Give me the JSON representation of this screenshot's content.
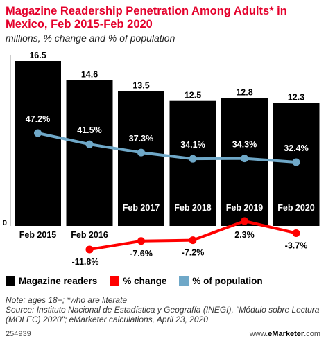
{
  "chart_data": {
    "type": "bar",
    "title": "Magazine Readership Penetration Among Adults* in Mexico, Feb 2015-Feb 2020",
    "subtitle": "millions, % change and % of population",
    "categories": [
      "Feb 2015",
      "Feb 2016",
      "Feb 2017",
      "Feb 2018",
      "Feb 2019",
      "Feb 2020"
    ],
    "zero_label": "0",
    "series": [
      {
        "name": "Magazine readers",
        "type": "bar",
        "color": "#000000",
        "values": [
          16.5,
          14.6,
          13.5,
          12.5,
          12.8,
          12.3
        ],
        "labels": [
          "16.5",
          "14.6",
          "13.5",
          "12.5",
          "12.8",
          "12.3"
        ]
      },
      {
        "name": "% change",
        "type": "line",
        "color": "#ff0000",
        "values": [
          null,
          -11.8,
          -7.6,
          -7.2,
          2.3,
          -3.7
        ],
        "labels": [
          "",
          "-11.8%",
          "-7.6%",
          "-7.2%",
          "2.3%",
          "-3.7%"
        ]
      },
      {
        "name": "% of population",
        "type": "line",
        "color": "#6fa8c8",
        "values": [
          47.2,
          41.5,
          37.3,
          34.1,
          34.3,
          32.4
        ],
        "labels": [
          "47.2%",
          "41.5%",
          "37.3%",
          "34.1%",
          "34.3%",
          "32.4%"
        ]
      }
    ]
  },
  "legend": [
    {
      "label": "Magazine readers",
      "color": "#000000"
    },
    {
      "label": "% change",
      "color": "#ff0000"
    },
    {
      "label": "% of population",
      "color": "#6fa8c8"
    }
  ],
  "notes": [
    "Note: ages 18+; *who are literate",
    "Source: Instituto Nacional de Estadística y Geografía (INEGI), \"Módulo sobre Lectura (MOLEC) 2020\"; eMarketer calculations, April 23, 2020"
  ],
  "footer": {
    "chart_id": "254939",
    "brand_prefix": "www.",
    "brand_name": "eMarketer",
    "brand_suffix": ".com"
  }
}
